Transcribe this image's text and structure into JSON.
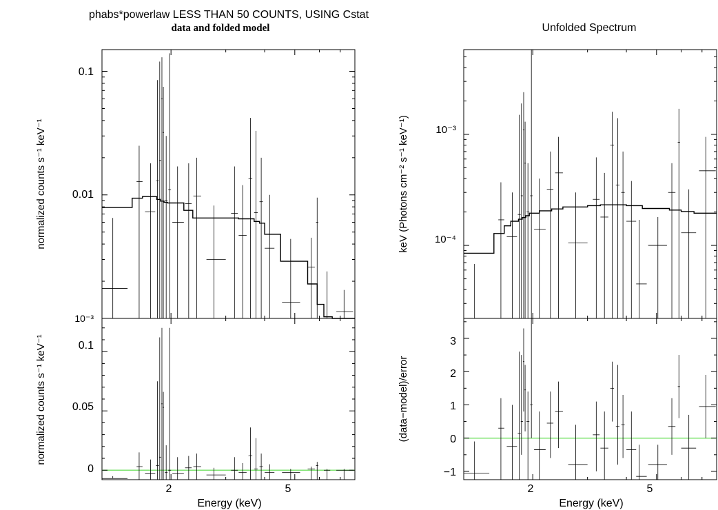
{
  "left": {
    "title": "phabs*powerlaw LESS THAN 50 COUNTS, USING Cstat",
    "subtitle": "data and folded model",
    "top_ylabel": "normalized counts s⁻¹ keV⁻¹",
    "bottom_ylabel": "normalized counts s⁻¹ keV⁻¹",
    "xlabel": "Energy (keV)",
    "top_yticks": [
      "0.1",
      "0.01",
      "10⁻³"
    ],
    "bottom_yticks": [
      "0.1",
      "0.05",
      "0"
    ],
    "xticks": [
      "2",
      "5"
    ]
  },
  "right": {
    "title": "Unfolded Spectrum",
    "top_ylabel": "keV (Photons cm⁻² s⁻¹ keV⁻¹)",
    "bottom_ylabel": "(data−model)/error",
    "xlabel": "Energy (keV)",
    "top_yticks": [
      "10⁻³",
      "10⁻⁴"
    ],
    "bottom_yticks": [
      "3",
      "2",
      "1",
      "0",
      "−1"
    ],
    "xticks": [
      "2",
      "5"
    ]
  },
  "colors": {
    "zero_line": "#7de36f",
    "data": "#000000"
  },
  "chart_data": [
    {
      "type": "scatter",
      "panel": "left-top",
      "scale": "log-log",
      "xlim": [
        1.2,
        7.8
      ],
      "ylim": [
        0.001,
        0.15
      ],
      "points": [
        {
          "x": 1.3,
          "xl": 1.2,
          "xh": 1.45,
          "y": 0.00175,
          "yl": 0.001,
          "yh": 0.0065
        },
        {
          "x": 1.58,
          "xl": 1.55,
          "xh": 1.62,
          "y": 0.0128,
          "yl": 0.001,
          "yh": 0.025
        },
        {
          "x": 1.72,
          "xl": 1.65,
          "xh": 1.78,
          "y": 0.0073,
          "yl": 0.001,
          "yh": 0.018
        },
        {
          "x": 1.81,
          "xl": 1.79,
          "xh": 1.83,
          "y": 0.013,
          "yl": 0.001,
          "yh": 0.085
        },
        {
          "x": 1.84,
          "xl": 1.83,
          "xh": 1.86,
          "y": 0.019,
          "yl": 0.001,
          "yh": 0.12
        },
        {
          "x": 1.87,
          "xl": 1.86,
          "xh": 1.88,
          "y": 0.06,
          "yl": 0.001,
          "yh": 0.13
        },
        {
          "x": 1.89,
          "xl": 1.88,
          "xh": 1.9,
          "y": 0.032,
          "yl": 0.001,
          "yh": 0.075
        },
        {
          "x": 1.93,
          "xl": 1.91,
          "xh": 1.95,
          "y": 0.009,
          "yl": 0.001,
          "yh": 0.03
        },
        {
          "x": 1.98,
          "xl": 1.96,
          "xh": 2.0,
          "y": 0.011,
          "yl": 0.001,
          "yh": 0.14
        },
        {
          "x": 2.1,
          "xl": 2.02,
          "xh": 2.2,
          "y": 0.006,
          "yl": 0.001,
          "yh": 0.017
        },
        {
          "x": 2.28,
          "xl": 2.22,
          "xh": 2.33,
          "y": 0.0085,
          "yl": 0.001,
          "yh": 0.018
        },
        {
          "x": 2.42,
          "xl": 2.36,
          "xh": 2.5,
          "y": 0.0098,
          "yl": 0.001,
          "yh": 0.02
        },
        {
          "x": 2.75,
          "xl": 2.6,
          "xh": 3.0,
          "y": 0.003,
          "yl": 0.001,
          "yh": 0.0082
        },
        {
          "x": 3.2,
          "xl": 3.12,
          "xh": 3.28,
          "y": 0.0071,
          "yl": 0.001,
          "yh": 0.017
        },
        {
          "x": 3.4,
          "xl": 3.3,
          "xh": 3.5,
          "y": 0.0047,
          "yl": 0.001,
          "yh": 0.012
        },
        {
          "x": 3.6,
          "xl": 3.55,
          "xh": 3.65,
          "y": 0.0135,
          "yl": 0.001,
          "yh": 0.042
        },
        {
          "x": 3.75,
          "xl": 3.7,
          "xh": 3.8,
          "y": 0.0072,
          "yl": 0.001,
          "yh": 0.033
        },
        {
          "x": 3.9,
          "xl": 3.85,
          "xh": 3.95,
          "y": 0.0088,
          "yl": 0.001,
          "yh": 0.02
        },
        {
          "x": 4.15,
          "xl": 4.0,
          "xh": 4.3,
          "y": 0.0037,
          "yl": 0.001,
          "yh": 0.01
        },
        {
          "x": 4.85,
          "xl": 4.55,
          "xh": 5.2,
          "y": 0.00135,
          "yl": 0.001,
          "yh": 0.0044
        },
        {
          "x": 5.65,
          "xl": 5.5,
          "xh": 5.8,
          "y": 0.0026,
          "yl": 0.001,
          "yh": 0.0045
        },
        {
          "x": 5.9,
          "xl": 5.85,
          "xh": 5.95,
          "y": 0.006,
          "yl": 0.001,
          "yh": 0.0095
        },
        {
          "x": 6.35,
          "xl": 6.2,
          "xh": 6.5,
          "y": 0.001,
          "yl": 0.001,
          "yh": 0.0024
        },
        {
          "x": 7.2,
          "xl": 6.8,
          "xh": 7.7,
          "y": 0.00113,
          "yl": 0.001,
          "yh": 0.0017
        }
      ],
      "model_step": [
        {
          "x0": 1.2,
          "x1": 1.5,
          "y": 0.0079
        },
        {
          "x0": 1.5,
          "x1": 1.62,
          "y": 0.0094
        },
        {
          "x0": 1.62,
          "x1": 1.8,
          "y": 0.0097
        },
        {
          "x0": 1.8,
          "x1": 1.85,
          "y": 0.0092
        },
        {
          "x0": 1.85,
          "x1": 1.9,
          "y": 0.0089
        },
        {
          "x0": 1.9,
          "x1": 1.95,
          "y": 0.0087
        },
        {
          "x0": 1.95,
          "x1": 2.2,
          "y": 0.0086
        },
        {
          "x0": 2.2,
          "x1": 2.35,
          "y": 0.0075
        },
        {
          "x0": 2.35,
          "x1": 3.3,
          "y": 0.0065
        },
        {
          "x0": 3.3,
          "x1": 3.7,
          "y": 0.0064
        },
        {
          "x0": 3.7,
          "x1": 3.85,
          "y": 0.0061
        },
        {
          "x0": 3.85,
          "x1": 4.0,
          "y": 0.0059
        },
        {
          "x0": 4.0,
          "x1": 4.5,
          "y": 0.0048
        },
        {
          "x0": 4.5,
          "x1": 5.5,
          "y": 0.0029
        },
        {
          "x0": 5.5,
          "x1": 5.9,
          "y": 0.0019
        },
        {
          "x0": 5.9,
          "x1": 6.2,
          "y": 0.0013
        },
        {
          "x0": 6.2,
          "x1": 6.6,
          "y": 0.00103
        },
        {
          "x0": 6.6,
          "x1": 7.8,
          "y": 0.00095
        }
      ]
    },
    {
      "type": "scatter",
      "panel": "left-bottom",
      "scale": "log-x",
      "xlim": [
        1.2,
        7.8
      ],
      "ylim": [
        -0.008,
        0.128
      ],
      "points": [
        {
          "x": 1.3,
          "xl": 1.2,
          "xh": 1.45,
          "y": -0.007,
          "yl": -0.007,
          "yh": -0.005
        },
        {
          "x": 1.58,
          "xl": 1.55,
          "xh": 1.62,
          "y": 0.003,
          "yl": -0.008,
          "yh": 0.015
        },
        {
          "x": 1.72,
          "xl": 1.65,
          "xh": 1.78,
          "y": -0.003,
          "yl": -0.008,
          "yh": 0.009
        },
        {
          "x": 1.81,
          "xl": 1.79,
          "xh": 1.83,
          "y": 0.004,
          "yl": -0.008,
          "yh": 0.075
        },
        {
          "x": 1.84,
          "xl": 1.83,
          "xh": 1.86,
          "y": 0.011,
          "yl": -0.008,
          "yh": 0.112
        },
        {
          "x": 1.87,
          "xl": 1.86,
          "xh": 1.88,
          "y": 0.056,
          "yl": -0.008,
          "yh": 0.12
        },
        {
          "x": 1.89,
          "xl": 1.88,
          "xh": 1.9,
          "y": 0.053,
          "yl": -0.008,
          "yh": 0.066
        },
        {
          "x": 1.93,
          "xl": 1.91,
          "xh": 1.95,
          "y": -0.002,
          "yl": -0.008,
          "yh": 0.021
        },
        {
          "x": 1.98,
          "xl": 1.96,
          "xh": 2.0,
          "y": 0.0,
          "yl": -0.008,
          "yh": 0.12
        },
        {
          "x": 2.1,
          "xl": 2.02,
          "xh": 2.2,
          "y": -0.003,
          "yl": -0.008,
          "yh": 0.011
        },
        {
          "x": 2.28,
          "xl": 2.22,
          "xh": 2.33,
          "y": 0.002,
          "yl": -0.008,
          "yh": 0.012
        },
        {
          "x": 2.42,
          "xl": 2.36,
          "xh": 2.5,
          "y": 0.003,
          "yl": -0.008,
          "yh": 0.014
        },
        {
          "x": 2.75,
          "xl": 2.6,
          "xh": 3.0,
          "y": -0.004,
          "yl": -0.008,
          "yh": 0.002
        },
        {
          "x": 3.2,
          "xl": 3.12,
          "xh": 3.28,
          "y": 0.0,
          "yl": -0.008,
          "yh": 0.011
        },
        {
          "x": 3.4,
          "xl": 3.3,
          "xh": 3.5,
          "y": -0.002,
          "yl": -0.008,
          "yh": 0.006
        },
        {
          "x": 3.6,
          "xl": 3.55,
          "xh": 3.65,
          "y": 0.012,
          "yl": -0.008,
          "yh": 0.036
        },
        {
          "x": 3.75,
          "xl": 3.7,
          "xh": 3.8,
          "y": 0.001,
          "yl": -0.008,
          "yh": 0.027
        },
        {
          "x": 3.9,
          "xl": 3.85,
          "xh": 3.95,
          "y": 0.003,
          "yl": -0.008,
          "yh": 0.014
        },
        {
          "x": 4.15,
          "xl": 4.0,
          "xh": 4.3,
          "y": -0.002,
          "yl": -0.008,
          "yh": 0.005
        },
        {
          "x": 4.85,
          "xl": 4.55,
          "xh": 5.2,
          "y": -0.002,
          "yl": -0.008,
          "yh": 0.001
        },
        {
          "x": 5.65,
          "xl": 5.5,
          "xh": 5.8,
          "y": 0.001,
          "yl": -0.008,
          "yh": 0.003
        },
        {
          "x": 5.9,
          "xl": 5.85,
          "xh": 5.95,
          "y": 0.004,
          "yl": -0.008,
          "yh": 0.007
        },
        {
          "x": 6.35,
          "xl": 6.2,
          "xh": 6.5,
          "y": 0.0,
          "yl": -0.008,
          "yh": 0.001
        },
        {
          "x": 7.2,
          "xl": 6.8,
          "xh": 7.7,
          "y": 0.0,
          "yl": -0.008,
          "yh": 0.001
        }
      ],
      "zero_line": 0
    },
    {
      "type": "scatter",
      "panel": "right-top",
      "scale": "log-log",
      "xlim": [
        1.2,
        7.8
      ],
      "ylim": [
        2.2e-05,
        0.0058
      ],
      "points": [
        {
          "x": 1.3,
          "xl": 1.2,
          "xh": 1.45,
          "y": 2.2e-05,
          "yl": 2.2e-05,
          "yh": 6.8e-05
        },
        {
          "x": 1.58,
          "xl": 1.55,
          "xh": 1.62,
          "y": 0.00017,
          "yl": 2.2e-05,
          "yh": 0.00037
        },
        {
          "x": 1.72,
          "xl": 1.65,
          "xh": 1.78,
          "y": 0.00012,
          "yl": 2.2e-05,
          "yh": 0.0003
        },
        {
          "x": 1.81,
          "xl": 1.79,
          "xh": 1.83,
          "y": 0.00019,
          "yl": 2.2e-05,
          "yh": 0.0015
        },
        {
          "x": 1.84,
          "xl": 1.83,
          "xh": 1.86,
          "y": 0.00028,
          "yl": 2.2e-05,
          "yh": 0.0019
        },
        {
          "x": 1.87,
          "xl": 1.86,
          "xh": 1.88,
          "y": 0.0011,
          "yl": 2.2e-05,
          "yh": 0.0024
        },
        {
          "x": 1.89,
          "xl": 1.88,
          "xh": 1.9,
          "y": 0.00055,
          "yl": 2.2e-05,
          "yh": 0.0013
        },
        {
          "x": 1.93,
          "xl": 1.91,
          "xh": 1.95,
          "y": 0.0002,
          "yl": 2.2e-05,
          "yh": 0.00055
        },
        {
          "x": 1.98,
          "xl": 1.96,
          "xh": 2.0,
          "y": 0.00028,
          "yl": 2.2e-05,
          "yh": 0.0058
        },
        {
          "x": 2.1,
          "xl": 2.02,
          "xh": 2.2,
          "y": 0.00014,
          "yl": 2.2e-05,
          "yh": 0.0004
        },
        {
          "x": 2.28,
          "xl": 2.22,
          "xh": 2.33,
          "y": 0.00032,
          "yl": 2.2e-05,
          "yh": 0.0007
        },
        {
          "x": 2.42,
          "xl": 2.36,
          "xh": 2.5,
          "y": 0.00045,
          "yl": 2.2e-05,
          "yh": 0.00095
        },
        {
          "x": 2.75,
          "xl": 2.6,
          "xh": 3.0,
          "y": 0.000105,
          "yl": 2.2e-05,
          "yh": 0.0003
        },
        {
          "x": 3.2,
          "xl": 3.12,
          "xh": 3.28,
          "y": 0.00026,
          "yl": 2.2e-05,
          "yh": 0.00062
        },
        {
          "x": 3.4,
          "xl": 3.3,
          "xh": 3.5,
          "y": 0.00018,
          "yl": 2.2e-05,
          "yh": 0.00045
        },
        {
          "x": 3.6,
          "xl": 3.55,
          "xh": 3.65,
          "y": 0.0008,
          "yl": 2.2e-05,
          "yh": 0.0016
        },
        {
          "x": 3.75,
          "xl": 3.7,
          "xh": 3.8,
          "y": 0.00035,
          "yl": 2.2e-05,
          "yh": 0.0014
        },
        {
          "x": 3.9,
          "xl": 3.85,
          "xh": 3.95,
          "y": 0.0003,
          "yl": 2.2e-05,
          "yh": 0.0007
        },
        {
          "x": 4.15,
          "xl": 4.0,
          "xh": 4.3,
          "y": 0.000165,
          "yl": 2.2e-05,
          "yh": 0.00038
        },
        {
          "x": 4.4,
          "xl": 4.3,
          "xh": 4.65,
          "y": 4.5e-05,
          "yl": 2.2e-05,
          "yh": 0.00017
        },
        {
          "x": 5.05,
          "xl": 4.7,
          "xh": 5.4,
          "y": 0.0001,
          "yl": 2.2e-05,
          "yh": 0.00018
        },
        {
          "x": 5.6,
          "xl": 5.45,
          "xh": 5.75,
          "y": 0.0003,
          "yl": 2.2e-05,
          "yh": 0.00055
        },
        {
          "x": 5.9,
          "xl": 5.85,
          "xh": 5.95,
          "y": 0.00085,
          "yl": 2.2e-05,
          "yh": 0.0017
        },
        {
          "x": 6.35,
          "xl": 6.0,
          "xh": 6.7,
          "y": 0.00013,
          "yl": 2.2e-05,
          "yh": 0.00032
        },
        {
          "x": 7.2,
          "xl": 6.85,
          "xh": 7.75,
          "y": 0.00047,
          "yl": 2.2e-05,
          "yh": 0.00095
        }
      ],
      "model_step": [
        {
          "x0": 1.2,
          "x1": 1.5,
          "y": 8.5e-05
        },
        {
          "x0": 1.5,
          "x1": 1.62,
          "y": 0.000128
        },
        {
          "x0": 1.62,
          "x1": 1.7,
          "y": 0.00015
        },
        {
          "x0": 1.7,
          "x1": 1.8,
          "y": 0.000165
        },
        {
          "x0": 1.8,
          "x1": 1.85,
          "y": 0.000172
        },
        {
          "x0": 1.85,
          "x1": 1.9,
          "y": 0.000178
        },
        {
          "x0": 1.9,
          "x1": 1.95,
          "y": 0.000185
        },
        {
          "x0": 1.95,
          "x1": 2.1,
          "y": 0.000195
        },
        {
          "x0": 2.1,
          "x1": 2.3,
          "y": 0.000205
        },
        {
          "x0": 2.3,
          "x1": 2.5,
          "y": 0.000213
        },
        {
          "x0": 2.5,
          "x1": 3.0,
          "y": 0.000222
        },
        {
          "x0": 3.0,
          "x1": 3.3,
          "y": 0.000228
        },
        {
          "x0": 3.3,
          "x1": 4.0,
          "y": 0.000232
        },
        {
          "x0": 4.0,
          "x1": 4.5,
          "y": 0.000228
        },
        {
          "x0": 4.5,
          "x1": 5.5,
          "y": 0.000215
        },
        {
          "x0": 5.5,
          "x1": 6.0,
          "y": 0.000208
        },
        {
          "x0": 6.0,
          "x1": 6.6,
          "y": 0.000202
        },
        {
          "x0": 6.6,
          "x1": 7.8,
          "y": 0.000195
        }
      ]
    },
    {
      "type": "scatter",
      "panel": "right-bottom",
      "scale": "log-x",
      "xlim": [
        1.2,
        7.8
      ],
      "ylim": [
        -1.25,
        3.6
      ],
      "points": [
        {
          "x": 1.3,
          "xl": 1.2,
          "xh": 1.45,
          "y": -1.05,
          "yl": -1.25,
          "yh": -0.1
        },
        {
          "x": 1.58,
          "xl": 1.55,
          "xh": 1.62,
          "y": 0.3,
          "yl": -1.25,
          "yh": 1.2
        },
        {
          "x": 1.72,
          "xl": 1.65,
          "xh": 1.78,
          "y": -0.25,
          "yl": -1.25,
          "yh": 1.0
        },
        {
          "x": 1.81,
          "xl": 1.79,
          "xh": 1.83,
          "y": 0.15,
          "yl": -1.25,
          "yh": 2.6
        },
        {
          "x": 1.84,
          "xl": 1.83,
          "xh": 1.86,
          "y": 0.5,
          "yl": -0.5,
          "yh": 2.5
        },
        {
          "x": 1.87,
          "xl": 1.86,
          "xh": 1.88,
          "y": 2.3,
          "yl": 0.8,
          "yh": 3.3
        },
        {
          "x": 1.89,
          "xl": 1.88,
          "xh": 1.9,
          "y": 1.45,
          "yl": 0.2,
          "yh": 2.2
        },
        {
          "x": 1.93,
          "xl": 1.91,
          "xh": 1.95,
          "y": 0.5,
          "yl": -1.25,
          "yh": 1.4
        },
        {
          "x": 1.98,
          "xl": 1.96,
          "xh": 2.0,
          "y": 1.0,
          "yl": 0.0,
          "yh": 3.6
        },
        {
          "x": 2.1,
          "xl": 2.02,
          "xh": 2.2,
          "y": -0.35,
          "yl": -1.25,
          "yh": 0.8
        },
        {
          "x": 2.28,
          "xl": 2.22,
          "xh": 2.33,
          "y": 0.45,
          "yl": -0.6,
          "yh": 1.4
        },
        {
          "x": 2.42,
          "xl": 2.36,
          "xh": 2.5,
          "y": 0.8,
          "yl": -0.3,
          "yh": 1.7
        },
        {
          "x": 2.75,
          "xl": 2.6,
          "xh": 3.0,
          "y": -0.8,
          "yl": -1.25,
          "yh": 0.4
        },
        {
          "x": 3.2,
          "xl": 3.12,
          "xh": 3.28,
          "y": 0.1,
          "yl": -1.0,
          "yh": 1.1
        },
        {
          "x": 3.4,
          "xl": 3.3,
          "xh": 3.5,
          "y": -0.3,
          "yl": -1.25,
          "yh": 0.8
        },
        {
          "x": 3.6,
          "xl": 3.55,
          "xh": 3.65,
          "y": 1.5,
          "yl": 0.5,
          "yh": 2.3
        },
        {
          "x": 3.75,
          "xl": 3.7,
          "xh": 3.8,
          "y": 0.35,
          "yl": -0.8,
          "yh": 2.2
        },
        {
          "x": 3.9,
          "xl": 3.85,
          "xh": 3.95,
          "y": 0.4,
          "yl": -0.6,
          "yh": 1.3
        },
        {
          "x": 4.15,
          "xl": 4.0,
          "xh": 4.3,
          "y": -0.35,
          "yl": -1.25,
          "yh": 0.8
        },
        {
          "x": 4.4,
          "xl": 4.3,
          "xh": 4.65,
          "y": -1.15,
          "yl": -1.25,
          "yh": -0.2
        },
        {
          "x": 5.05,
          "xl": 4.7,
          "xh": 5.4,
          "y": -0.8,
          "yl": -1.25,
          "yh": -0.2
        },
        {
          "x": 5.6,
          "xl": 5.45,
          "xh": 5.75,
          "y": 0.35,
          "yl": -0.5,
          "yh": 1.2
        },
        {
          "x": 5.9,
          "xl": 5.85,
          "xh": 5.95,
          "y": 1.55,
          "yl": 0.6,
          "yh": 2.5
        },
        {
          "x": 6.35,
          "xl": 6.0,
          "xh": 6.7,
          "y": -0.3,
          "yl": -1.25,
          "yh": 0.7
        },
        {
          "x": 7.2,
          "xl": 6.85,
          "xh": 7.75,
          "y": 0.95,
          "yl": 0.0,
          "yh": 1.9
        }
      ],
      "zero_line": 0
    }
  ]
}
